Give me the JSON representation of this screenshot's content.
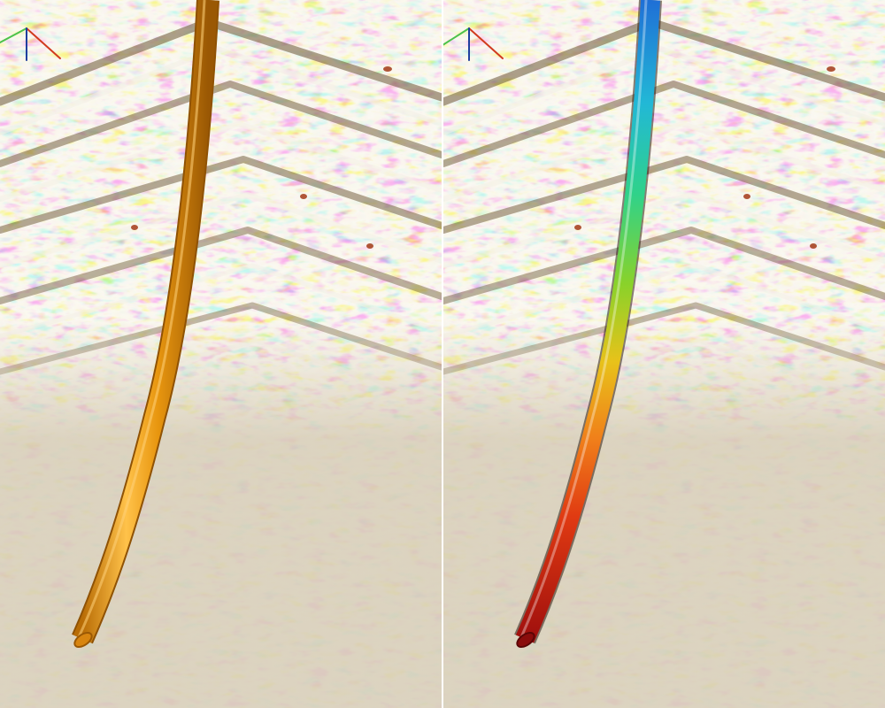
{
  "scene": {
    "colors": {
      "seismic_base": "#d7cdb8",
      "seismic_dark": "#6b5634",
      "seismic_light": "#f4f0e6",
      "seismic_red": "#a33a16",
      "divider": "#ffffff",
      "well_solid": "#e8960f",
      "well_solid_highlight": "#ffc24a",
      "well_solid_shadow": "#b86c05",
      "axis_x": "#d13a1f",
      "axis_y": "#4cc24a",
      "axis_z": "#1f3f9e"
    },
    "left_view": {
      "well_style": "solid",
      "well_icon": "wellbore-tube-icon"
    },
    "right_view": {
      "well_style": "property-gradient",
      "well_icon": "wellbore-tube-icon",
      "colormap": [
        "#1f6fd6",
        "#22b8d6",
        "#2fd28a",
        "#8ad22a",
        "#e8c21a",
        "#f07f1a",
        "#e03a12",
        "#9c0d0d"
      ]
    }
  }
}
